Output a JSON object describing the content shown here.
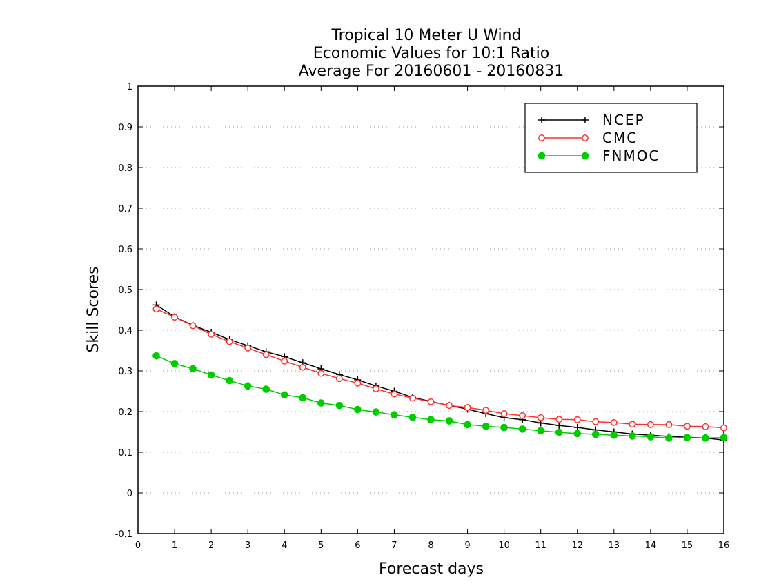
{
  "chart_data": {
    "type": "line",
    "title_lines": [
      "Tropical 10 Meter U Wind",
      "Economic Values for 10:1 Ratio",
      "Average For 20160601 - 20160831"
    ],
    "xlabel": "Forecast days",
    "ylabel": "Skill Scores",
    "xlim": [
      0,
      16
    ],
    "ylim": [
      -0.1,
      1
    ],
    "x_ticks": [
      0,
      1,
      2,
      3,
      4,
      5,
      6,
      7,
      8,
      9,
      10,
      11,
      12,
      13,
      14,
      15,
      16
    ],
    "x_tick_labels": [
      "0",
      "1",
      "2",
      "3",
      "4",
      "5",
      "6",
      "7",
      "8",
      "9",
      "10",
      "11",
      "12",
      "13",
      "14",
      "15",
      "16"
    ],
    "y_ticks": [
      -0.1,
      0,
      0.1,
      0.2,
      0.3,
      0.4,
      0.5,
      0.6,
      0.7,
      0.8,
      0.9,
      1
    ],
    "y_tick_labels": [
      "-0.1",
      "0",
      "0.1",
      "0.2",
      "0.3",
      "0.4",
      "0.5",
      "0.6",
      "0.7",
      "0.8",
      "0.9",
      "1"
    ],
    "grid": "horizontal dotted",
    "legend_position": "top-right",
    "x": [
      0.5,
      1,
      1.5,
      2,
      2.5,
      3,
      3.5,
      4,
      4.5,
      5,
      5.5,
      6,
      6.5,
      7,
      7.5,
      8,
      8.5,
      9,
      9.5,
      10,
      10.5,
      11,
      11.5,
      12,
      12.5,
      13,
      13.5,
      14,
      14.5,
      15,
      15.5,
      16
    ],
    "series": [
      {
        "name": "NCEP",
        "color": "#000000",
        "marker": "plus",
        "values": [
          0.462,
          0.433,
          0.412,
          0.395,
          0.377,
          0.362,
          0.347,
          0.335,
          0.32,
          0.305,
          0.291,
          0.278,
          0.263,
          0.25,
          0.235,
          0.225,
          0.215,
          0.206,
          0.195,
          0.185,
          0.18,
          0.172,
          0.166,
          0.161,
          0.155,
          0.15,
          0.145,
          0.142,
          0.139,
          0.137,
          0.135,
          0.13
        ]
      },
      {
        "name": "CMC",
        "color": "#ff3030",
        "marker": "open-circle",
        "values": [
          0.452,
          0.432,
          0.411,
          0.39,
          0.372,
          0.356,
          0.34,
          0.324,
          0.309,
          0.294,
          0.281,
          0.27,
          0.256,
          0.243,
          0.233,
          0.224,
          0.215,
          0.21,
          0.203,
          0.195,
          0.19,
          0.185,
          0.181,
          0.18,
          0.175,
          0.173,
          0.169,
          0.168,
          0.168,
          0.164,
          0.163,
          0.16
        ]
      },
      {
        "name": "FNMOC",
        "color": "#00cc00",
        "marker": "filled-circle",
        "values": [
          0.337,
          0.318,
          0.305,
          0.29,
          0.276,
          0.263,
          0.255,
          0.241,
          0.234,
          0.221,
          0.215,
          0.205,
          0.199,
          0.192,
          0.186,
          0.18,
          0.177,
          0.168,
          0.164,
          0.161,
          0.157,
          0.153,
          0.149,
          0.146,
          0.144,
          0.142,
          0.14,
          0.138,
          0.135,
          0.136,
          0.135,
          0.136
        ]
      }
    ]
  }
}
